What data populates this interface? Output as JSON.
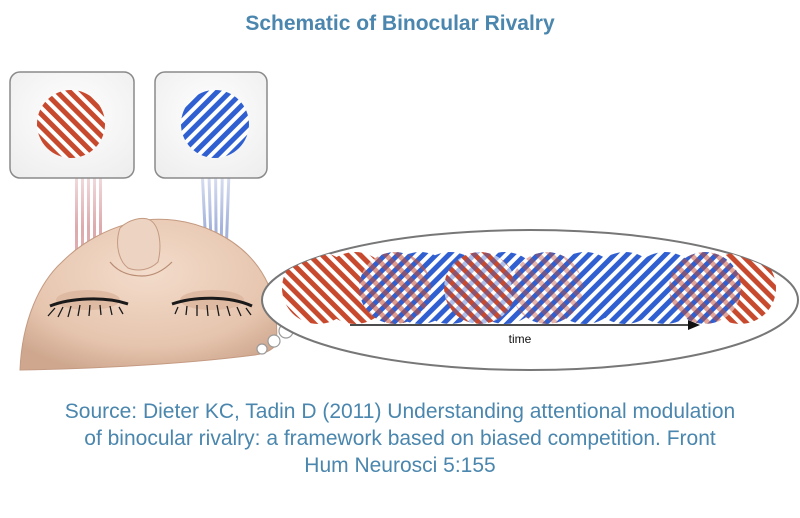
{
  "title": "Schematic of Binocular Rivalry",
  "timeline": {
    "axis_label": "time"
  },
  "caption": {
    "lines": [
      "Source: Dieter KC, Tadin D (2011) Understanding attentional modulation",
      "of binocular rivalry: a framework based on biased competition. Front",
      "Hum Neurosci 5:155"
    ]
  },
  "colors": {
    "text_accent": "#4a86ad",
    "red_grating": "#c74a2e",
    "blue_grating": "#2f5fd0",
    "red_beams": "#d9a0a4",
    "blue_beams": "#9aaad8",
    "skin": "#e9cdb8",
    "panel_border": "#8a8a8a"
  },
  "icons": {
    "left_stimulus": "red-diagonal-grating",
    "right_stimulus": "blue-diagonal-grating",
    "face": "face-from-above",
    "thought_bubble": "thought-bubble"
  }
}
